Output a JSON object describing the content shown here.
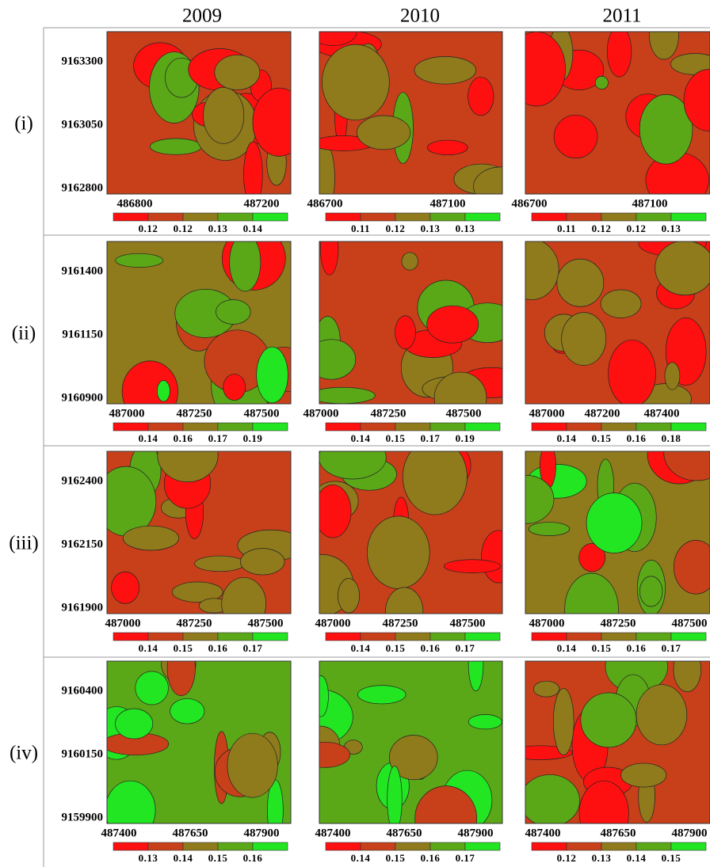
{
  "columns": [
    "2009",
    "2010",
    "2011"
  ],
  "rows": [
    {
      "label": "(i)",
      "yticks": [
        9163300,
        9163050,
        9162800
      ],
      "panels": [
        {
          "xticks": [
            486800,
            487200
          ],
          "legend": [
            0.12,
            0.12,
            0.13,
            0.14
          ]
        },
        {
          "xticks": [
            486700,
            487100
          ],
          "legend": [
            0.11,
            0.12,
            0.13,
            0.13
          ]
        },
        {
          "xticks": [
            486700,
            487100
          ],
          "legend": [
            0.11,
            0.12,
            0.12,
            0.13
          ]
        }
      ]
    },
    {
      "label": "(ii)",
      "yticks": [
        9161400,
        9161150,
        9160900
      ],
      "panels": [
        {
          "xticks": [
            487000,
            487250,
            487500
          ],
          "legend": [
            0.14,
            0.16,
            0.17,
            0.19
          ]
        },
        {
          "xticks": [
            487000,
            487250,
            487500
          ],
          "legend": [
            0.14,
            0.15,
            0.17,
            0.19
          ]
        },
        {
          "xticks": [
            487000,
            487200,
            487400
          ],
          "legend": [
            0.14,
            0.15,
            0.16,
            0.18
          ]
        }
      ]
    },
    {
      "label": "(iii)",
      "yticks": [
        9162400,
        9162150,
        9161900
      ],
      "panels": [
        {
          "xticks": [
            487000,
            487250,
            487500
          ],
          "legend": [
            0.14,
            0.15,
            0.16,
            0.17
          ]
        },
        {
          "xticks": [
            487000,
            487250,
            487500
          ],
          "legend": [
            0.14,
            0.15,
            0.16,
            0.17
          ]
        },
        {
          "xticks": [
            487000,
            487250,
            487500
          ],
          "legend": [
            0.14,
            0.15,
            0.16,
            0.17
          ]
        }
      ]
    },
    {
      "label": "(iv)",
      "yticks": [
        9160400,
        9160150,
        9159900
      ],
      "panels": [
        {
          "xticks": [
            487400,
            487650,
            487900
          ],
          "legend": [
            0.13,
            0.14,
            0.15,
            0.16
          ]
        },
        {
          "xticks": [
            487400,
            487650,
            487900
          ],
          "legend": [
            0.14,
            0.15,
            0.16,
            0.17
          ]
        },
        {
          "xticks": [
            487400,
            487650,
            487900
          ],
          "legend": [
            0.12,
            0.13,
            0.14,
            0.15
          ]
        }
      ]
    }
  ]
}
